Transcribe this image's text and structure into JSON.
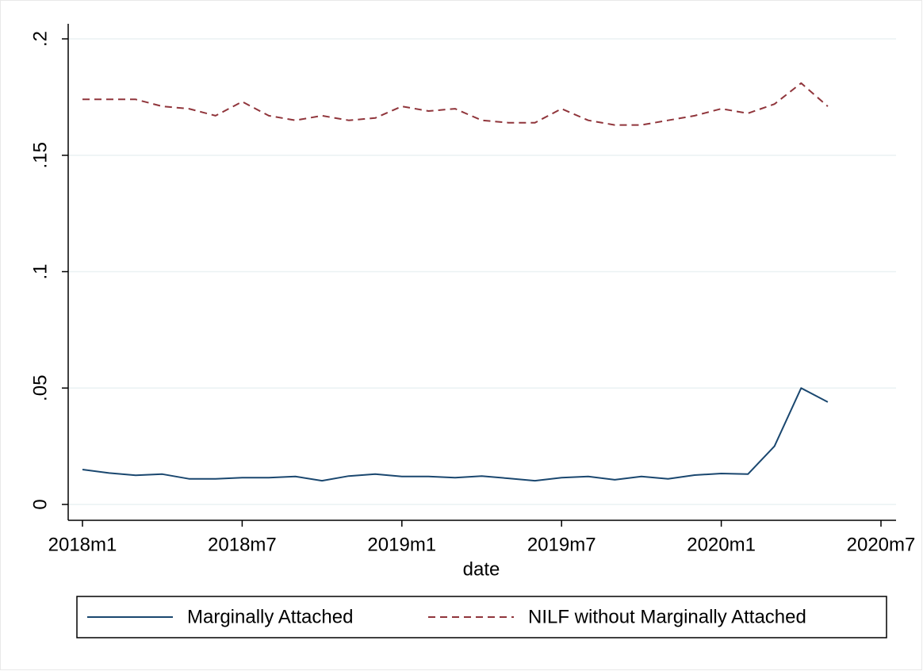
{
  "chart_data": {
    "type": "line",
    "x_label": "date",
    "categories": [
      "2018m1",
      null,
      null,
      null,
      null,
      null,
      "2018m7",
      null,
      null,
      null,
      null,
      null,
      "2019m1",
      null,
      null,
      null,
      null,
      null,
      "2019m7",
      null,
      null,
      null,
      null,
      null,
      "2020m1",
      null,
      null,
      null,
      null,
      null,
      "2020m7"
    ],
    "series": [
      {
        "name": "Marginally Attached",
        "color": "#1a476f",
        "dash": "solid",
        "values": [
          0.015,
          0.0135,
          0.0125,
          0.013,
          0.011,
          0.011,
          0.0115,
          0.0115,
          0.012,
          0.0102,
          0.0122,
          0.013,
          0.012,
          0.012,
          0.0115,
          0.0122,
          0.0112,
          0.0102,
          0.0115,
          0.012,
          0.0106,
          0.012,
          0.011,
          0.0126,
          0.0133,
          0.013,
          0.025,
          0.05,
          0.044,
          null,
          null
        ]
      },
      {
        "name": "NILF without Marginally Attached",
        "color": "#90353b",
        "dash": "dashed",
        "values": [
          0.174,
          0.174,
          0.174,
          0.171,
          0.17,
          0.167,
          0.173,
          0.167,
          0.165,
          0.167,
          0.165,
          0.166,
          0.171,
          0.169,
          0.17,
          0.165,
          0.164,
          0.164,
          0.17,
          0.165,
          0.163,
          0.163,
          0.165,
          0.167,
          0.17,
          0.168,
          0.172,
          0.181,
          0.171,
          null,
          null
        ]
      }
    ],
    "ylim": [
      0,
      0.2
    ],
    "yticks": [
      0,
      {
        "value": 0.05,
        "label": ".05"
      },
      {
        "value": 0.1,
        "label": ".1"
      },
      {
        "value": 0.15,
        "label": ".15"
      },
      {
        "value": 0.2,
        "label": ".2"
      }
    ],
    "grid": true,
    "legend": "bottom"
  }
}
